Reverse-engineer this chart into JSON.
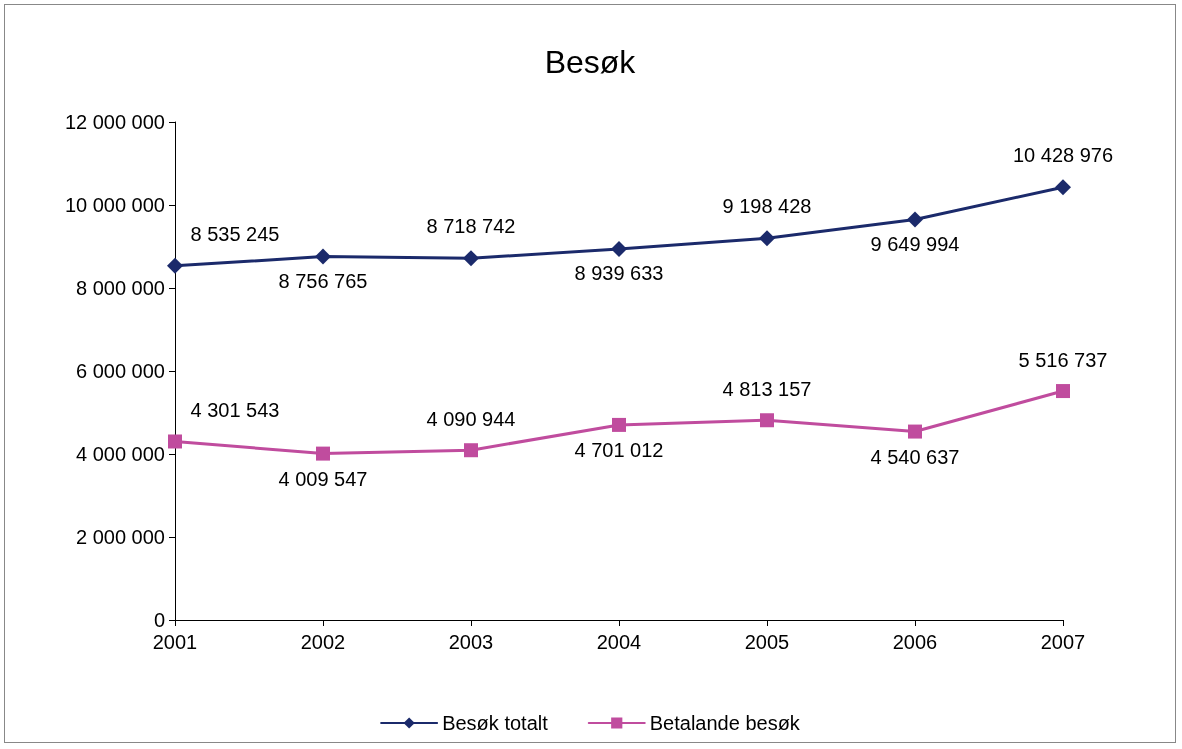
{
  "chart_data": {
    "type": "line",
    "title": "Besøk",
    "categories": [
      "2001",
      "2002",
      "2003",
      "2004",
      "2005",
      "2006",
      "2007"
    ],
    "series": [
      {
        "name": "Besøk totalt",
        "color": "#1b2a6b",
        "marker": "diamond",
        "values": [
          8535245,
          8756765,
          8718742,
          8939633,
          9198428,
          9649994,
          10428976
        ]
      },
      {
        "name": "Betalande besøk",
        "color": "#c04c9e",
        "marker": "square",
        "values": [
          4301543,
          4009547,
          4090944,
          4701012,
          4813157,
          4540637,
          5516737
        ]
      }
    ],
    "ylim": [
      0,
      12000000
    ],
    "yticks": [
      0,
      2000000,
      4000000,
      6000000,
      8000000,
      10000000,
      12000000
    ],
    "grid": false,
    "legend": "bottom",
    "data_labels": true,
    "line_style": "solid"
  }
}
